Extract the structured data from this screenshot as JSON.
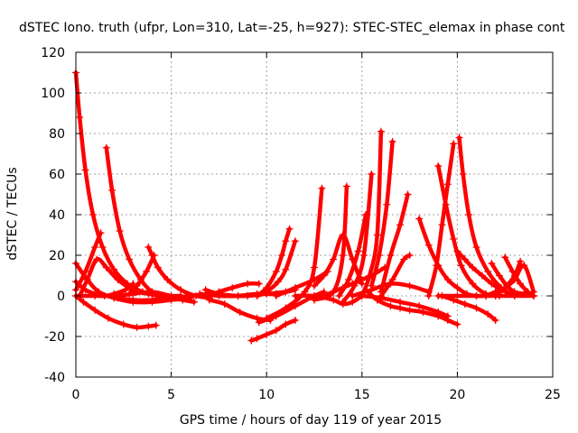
{
  "chart_data": {
    "type": "scatter",
    "title": "dSTEC Iono. truth (ufpr, Lon=310, Lat=-25, h=927): STEC-STEC_elemax in phase cont",
    "xlabel": "GPS time / hours of day 119 of year 2015",
    "ylabel": "dSTEC  / TECUs",
    "xlim": [
      0,
      25
    ],
    "ylim": [
      -40,
      120
    ],
    "xticks": [
      0,
      5,
      10,
      15,
      20,
      25
    ],
    "yticks": [
      -40,
      -20,
      0,
      20,
      40,
      60,
      80,
      100,
      120
    ],
    "grid": true,
    "marker": "+",
    "color": "#ff0000",
    "series": [
      {
        "x": [
          0.0,
          0.2,
          0.5,
          0.9,
          1.4,
          2.0,
          2.7,
          3.5,
          4.3,
          5.2,
          6.0
        ],
        "y": [
          110,
          88,
          62,
          40,
          24,
          13,
          6,
          2,
          0,
          -1,
          -2
        ]
      },
      {
        "x": [
          0.0,
          0.4,
          1.0,
          1.7,
          2.5,
          3.2,
          3.8,
          4.2
        ],
        "y": [
          0,
          -3,
          -7,
          -11,
          -14,
          -15.5,
          -15,
          -14.5
        ]
      },
      {
        "x": [
          0.0,
          0.6,
          1.2,
          2.0,
          3.0,
          4.0,
          5.0,
          6.0
        ],
        "y": [
          16,
          8,
          2,
          -1,
          -3,
          -3,
          -2,
          -1
        ]
      },
      {
        "x": [
          0.0,
          0.5,
          1.0,
          1.5,
          2.0,
          2.6,
          3.0
        ],
        "y": [
          7,
          3,
          1,
          0,
          1,
          3,
          6
        ]
      },
      {
        "x": [
          0.0,
          0.5,
          1.0,
          1.3
        ],
        "y": [
          3,
          12,
          24,
          31
        ]
      },
      {
        "x": [
          0.0,
          1.0,
          2.0,
          3.0,
          4.0,
          5.0,
          6.0
        ],
        "y": [
          0,
          0,
          0,
          1,
          2,
          0,
          -1
        ]
      },
      {
        "x": [
          0.2,
          0.6,
          1.1,
          1.6,
          2.2,
          3.0,
          3.8,
          4.6,
          5.5
        ],
        "y": [
          0,
          8,
          18,
          14,
          8,
          3,
          1,
          0,
          0
        ]
      },
      {
        "x": [
          1.6,
          1.9,
          2.3,
          2.8,
          3.4,
          4.0,
          4.8,
          5.6,
          6.2
        ],
        "y": [
          73,
          52,
          32,
          18,
          8,
          2,
          -1,
          -2,
          -3
        ]
      },
      {
        "x": [
          2.8,
          3.2,
          3.7,
          4.1
        ],
        "y": [
          1,
          5,
          12,
          20
        ]
      },
      {
        "x": [
          3.8,
          4.0,
          4.3,
          4.8,
          5.5,
          6.3,
          7.0
        ],
        "y": [
          24,
          20,
          14,
          8,
          3,
          0,
          -1
        ]
      },
      {
        "x": [
          2.2,
          3.0,
          4.0,
          5.0,
          6.0,
          7.0
        ],
        "y": [
          -1,
          -2,
          -2,
          -1,
          0,
          1
        ]
      },
      {
        "x": [
          6.8,
          7.5,
          8.5,
          9.0,
          10.0,
          11.0
        ],
        "y": [
          3,
          1,
          0,
          0,
          1,
          2
        ]
      },
      {
        "x": [
          7.0,
          7.5,
          8.2,
          9.0,
          9.6
        ],
        "y": [
          0,
          2,
          4,
          6,
          6
        ]
      },
      {
        "x": [
          6.5,
          7.5,
          8.5,
          9.5,
          10.5,
          11.5
        ],
        "y": [
          1,
          0,
          0,
          1,
          1,
          3
        ]
      },
      {
        "x": [
          7.0,
          7.8,
          8.6,
          9.5,
          10.2
        ],
        "y": [
          -2,
          -4,
          -8,
          -11,
          -12
        ]
      },
      {
        "x": [
          9.5,
          10.0,
          10.5,
          10.8,
          11.0,
          11.2
        ],
        "y": [
          0,
          4,
          12,
          20,
          27,
          33
        ]
      },
      {
        "x": [
          9.5,
          10.0,
          10.6,
          11.0,
          11.5
        ],
        "y": [
          0,
          2,
          7,
          13,
          27
        ]
      },
      {
        "x": [
          9.2,
          9.5,
          10.0,
          10.5,
          11.0,
          11.5
        ],
        "y": [
          -22,
          -21,
          -19,
          -17,
          -14,
          -12
        ]
      },
      {
        "x": [
          9.6,
          10.5,
          11.5,
          12.5,
          13.0
        ],
        "y": [
          -13,
          -10,
          -5,
          0,
          2
        ]
      },
      {
        "x": [
          10.0,
          11.0,
          12.0,
          12.5,
          12.9
        ],
        "y": [
          -11,
          -6,
          2,
          14,
          53
        ]
      },
      {
        "x": [
          10.5,
          11.5,
          12.5,
          13.2
        ],
        "y": [
          0,
          4,
          8,
          12
        ]
      },
      {
        "x": [
          11.5,
          12.5,
          13.5,
          14.0,
          14.5,
          15.0
        ],
        "y": [
          0,
          0,
          -2,
          -4,
          -3,
          0
        ]
      },
      {
        "x": [
          12.5,
          13.0,
          13.5,
          14.0,
          14.5,
          15.0
        ],
        "y": [
          5,
          10,
          18,
          30,
          18,
          6
        ]
      },
      {
        "x": [
          13.0,
          13.5,
          14.0,
          14.5,
          15.0,
          15.5,
          16.2
        ],
        "y": [
          0,
          2,
          4,
          6,
          8,
          10,
          14
        ]
      },
      {
        "x": [
          12.5,
          13.5,
          14.0,
          14.2
        ],
        "y": [
          -2,
          2,
          20,
          54
        ]
      },
      {
        "x": [
          14.0,
          14.6,
          15.1,
          15.5
        ],
        "y": [
          -3,
          5,
          20,
          60
        ]
      },
      {
        "x": [
          13.8,
          14.3,
          14.8,
          15.2
        ],
        "y": [
          0,
          8,
          22,
          40
        ]
      },
      {
        "x": [
          15.0,
          15.4,
          15.8,
          16.0
        ],
        "y": [
          0,
          10,
          30,
          81
        ]
      },
      {
        "x": [
          15.5,
          15.9,
          16.3,
          16.6
        ],
        "y": [
          5,
          20,
          45,
          76
        ]
      },
      {
        "x": [
          16.0,
          16.5,
          17.0,
          17.4
        ],
        "y": [
          2,
          20,
          35,
          50
        ]
      },
      {
        "x": [
          16.0,
          16.6,
          17.2,
          17.5
        ],
        "y": [
          0,
          8,
          18,
          20
        ]
      },
      {
        "x": [
          14.5,
          15.5,
          16.5,
          17.5,
          18.5
        ],
        "y": [
          0,
          3,
          6,
          5,
          2
        ]
      },
      {
        "x": [
          15.2,
          15.8,
          16.5,
          17.0,
          17.5,
          18.2,
          19.0,
          19.5,
          20.0
        ],
        "y": [
          3,
          -2,
          -5,
          -6,
          -7,
          -8,
          -10,
          -12,
          -14
        ]
      },
      {
        "x": [
          15.0,
          16.0,
          17.0,
          18.0,
          19.0,
          19.5
        ],
        "y": [
          0,
          -1,
          -3,
          -5,
          -8,
          -10
        ]
      },
      {
        "x": [
          18.0,
          18.5,
          19.0,
          19.5,
          20.0,
          20.5,
          21.0,
          21.5
        ],
        "y": [
          38,
          25,
          15,
          8,
          4,
          1,
          0,
          0
        ]
      },
      {
        "x": [
          18.5,
          18.9,
          19.2,
          19.5,
          19.8
        ],
        "y": [
          0,
          15,
          35,
          55,
          75
        ]
      },
      {
        "x": [
          19.0,
          19.4,
          19.8,
          20.2,
          20.8,
          21.5,
          22.2
        ],
        "y": [
          64,
          45,
          28,
          15,
          6,
          1,
          0
        ]
      },
      {
        "x": [
          20.1,
          20.3,
          20.6,
          21.0,
          21.6,
          22.3,
          23.0
        ],
        "y": [
          78,
          60,
          40,
          24,
          12,
          4,
          0
        ]
      },
      {
        "x": [
          20.0,
          20.4,
          20.8,
          21.3,
          21.8,
          22.3,
          22.8
        ],
        "y": [
          22,
          18,
          14,
          10,
          6,
          3,
          1
        ]
      },
      {
        "x": [
          19.2,
          19.8,
          20.4,
          21.0,
          21.6,
          22.0
        ],
        "y": [
          0,
          -2,
          -4,
          -6,
          -9,
          -12
        ]
      },
      {
        "x": [
          19.0,
          20.0,
          21.0,
          22.0,
          23.0,
          24.0
        ],
        "y": [
          0,
          0,
          0,
          0,
          0,
          0
        ]
      },
      {
        "x": [
          21.8,
          22.2,
          22.6,
          23.0,
          23.5,
          24.0
        ],
        "y": [
          16,
          10,
          5,
          2,
          1,
          0
        ]
      },
      {
        "x": [
          22.5,
          22.9,
          23.3,
          23.7,
          24.0
        ],
        "y": [
          19,
          12,
          6,
          2,
          0
        ]
      },
      {
        "x": [
          21.5,
          22.0,
          22.5,
          23.0,
          23.5,
          24.0
        ],
        "y": [
          0,
          2,
          4,
          8,
          15,
          2
        ]
      },
      {
        "x": [
          22.0,
          22.5,
          23.0,
          23.3
        ],
        "y": [
          0,
          4,
          10,
          17
        ]
      }
    ]
  }
}
